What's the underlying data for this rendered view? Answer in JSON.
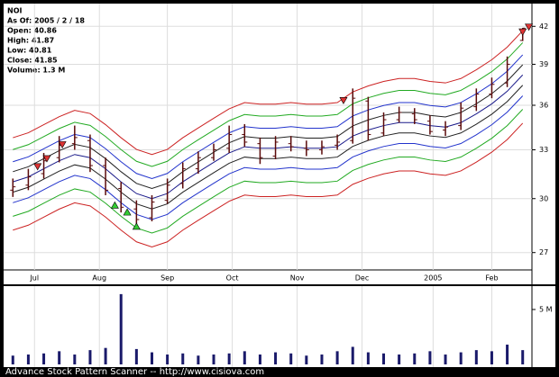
{
  "chart_data": {
    "type": "ohlc",
    "ticker": "NOI",
    "as_of": "As Of: 2005 / 2 / 18",
    "info": [
      "Open: 40.86",
      "High: 41.87",
      "Low: 40.81",
      "Close: 41.85",
      "Volume: 1.3 M"
    ],
    "footer": "Advance Stock Pattern Scanner -- http://www.cisiova.com",
    "log_scale": true,
    "grid": true,
    "xlim": [
      -3,
      168
    ],
    "ylim": [
      26.1,
      43.6
    ],
    "xticks": [
      {
        "value": 7,
        "label": "Jul"
      },
      {
        "value": 28,
        "label": "Aug"
      },
      {
        "value": 50,
        "label": "Sep"
      },
      {
        "value": 71,
        "label": "Oct"
      },
      {
        "value": 92,
        "label": "Nov"
      },
      {
        "value": 113,
        "label": "Dec"
      },
      {
        "value": 136,
        "label": "2005"
      },
      {
        "value": 155,
        "label": "Feb"
      }
    ],
    "yticks": [
      27,
      30,
      33,
      36,
      39,
      42
    ],
    "x": [
      0,
      5,
      10,
      15,
      20,
      25,
      30,
      35,
      40,
      45,
      50,
      55,
      60,
      65,
      70,
      75,
      80,
      85,
      90,
      95,
      100,
      105,
      110,
      115,
      120,
      125,
      130,
      135,
      140,
      145,
      150,
      155,
      160,
      165
    ],
    "open": [
      30.5,
      30.8,
      31.5,
      32.5,
      33.4,
      33.6,
      32.0,
      30.6,
      29.4,
      28.9,
      29.9,
      30.9,
      31.8,
      32.5,
      33.1,
      34.0,
      33.4,
      32.6,
      33.4,
      33.1,
      33.0,
      33.3,
      33.6,
      36.3,
      34.1,
      35.0,
      35.4,
      34.9,
      34.3,
      34.6,
      35.9,
      36.8,
      37.6,
      40.86
    ],
    "high": [
      31.2,
      31.8,
      32.8,
      33.9,
      34.6,
      34.0,
      32.5,
      31.0,
      29.9,
      30.2,
      31.2,
      32.2,
      32.9,
      33.4,
      34.6,
      34.7,
      33.8,
      33.9,
      33.9,
      33.6,
      33.6,
      34.0,
      37.2,
      36.6,
      35.5,
      35.9,
      35.8,
      35.3,
      34.9,
      36.2,
      37.2,
      38.0,
      39.6,
      41.87
    ],
    "low": [
      30.1,
      30.5,
      31.2,
      32.2,
      33.0,
      31.6,
      30.2,
      29.2,
      28.3,
      28.7,
      29.7,
      30.6,
      31.5,
      32.3,
      32.8,
      33.2,
      32.1,
      32.4,
      32.9,
      32.6,
      32.7,
      33.0,
      33.4,
      33.6,
      33.9,
      34.8,
      34.7,
      34.0,
      33.9,
      34.3,
      35.6,
      36.5,
      37.3,
      40.81
    ],
    "close": [
      30.7,
      31.3,
      32.3,
      33.3,
      33.8,
      32.0,
      30.5,
      29.5,
      28.8,
      29.8,
      30.8,
      31.8,
      32.5,
      33.0,
      34.0,
      33.5,
      32.5,
      33.5,
      33.2,
      33.0,
      33.2,
      33.5,
      36.5,
      34.0,
      35.0,
      35.5,
      35.0,
      34.2,
      34.5,
      35.8,
      36.8,
      37.5,
      39.0,
      41.85
    ],
    "bar_color": "#5a0a0a",
    "center": [
      31.0,
      31.3,
      31.8,
      32.3,
      32.7,
      32.5,
      31.8,
      31.0,
      30.3,
      30.0,
      30.3,
      31.0,
      31.6,
      32.2,
      32.8,
      33.2,
      33.1,
      33.1,
      33.2,
      33.1,
      33.1,
      33.2,
      33.9,
      34.3,
      34.6,
      34.8,
      34.8,
      34.6,
      34.5,
      34.8,
      35.4,
      36.1,
      37.0,
      38.2
    ],
    "bands": [
      {
        "offset_pct": 9,
        "color": "#cc2222"
      },
      {
        "offset_pct": 6.5,
        "color": "#22aa22"
      },
      {
        "offset_pct": 4,
        "color": "#2233cc"
      },
      {
        "offset_pct": 2,
        "color": "#222222"
      },
      {
        "offset_pct": 0,
        "color": "#1a1a8a"
      },
      {
        "offset_pct": -2,
        "color": "#222222"
      },
      {
        "offset_pct": -4,
        "color": "#2233cc"
      },
      {
        "offset_pct": -6.5,
        "color": "#22aa22"
      },
      {
        "offset_pct": -9,
        "color": "#cc2222"
      }
    ],
    "signals": [
      {
        "x": 8,
        "y": 31.9,
        "kind": "sell",
        "color": "#dd3333"
      },
      {
        "x": 11,
        "y": 32.4,
        "kind": "sell",
        "color": "#dd3333"
      },
      {
        "x": 16,
        "y": 33.3,
        "kind": "sell",
        "color": "#dd3333"
      },
      {
        "x": 107,
        "y": 36.3,
        "kind": "sell",
        "color": "#dd3333"
      },
      {
        "x": 165,
        "y": 41.5,
        "kind": "sell",
        "color": "#dd3333"
      },
      {
        "x": 167,
        "y": 41.9,
        "kind": "sell",
        "color": "#dd3333"
      },
      {
        "x": 33,
        "y": 29.6,
        "kind": "buy",
        "color": "#33cc33"
      },
      {
        "x": 37,
        "y": 29.2,
        "kind": "buy",
        "color": "#33cc33"
      },
      {
        "x": 40,
        "y": 28.4,
        "kind": "buy",
        "color": "#33cc33"
      }
    ],
    "volume": [
      0.8,
      0.9,
      1.0,
      1.2,
      0.9,
      1.3,
      1.5,
      6.4,
      1.4,
      1.1,
      0.9,
      1.0,
      0.8,
      0.9,
      1.0,
      1.2,
      0.9,
      1.1,
      1.0,
      0.8,
      0.9,
      1.2,
      1.6,
      1.1,
      1.0,
      0.9,
      1.0,
      1.2,
      0.9,
      1.1,
      1.3,
      1.2,
      1.8,
      1.3
    ],
    "volume_color": "#1a1a6a",
    "volume_ylim": [
      0,
      6.8
    ],
    "volume_yticks": [
      {
        "value": 5,
        "label": "5 M"
      }
    ]
  }
}
